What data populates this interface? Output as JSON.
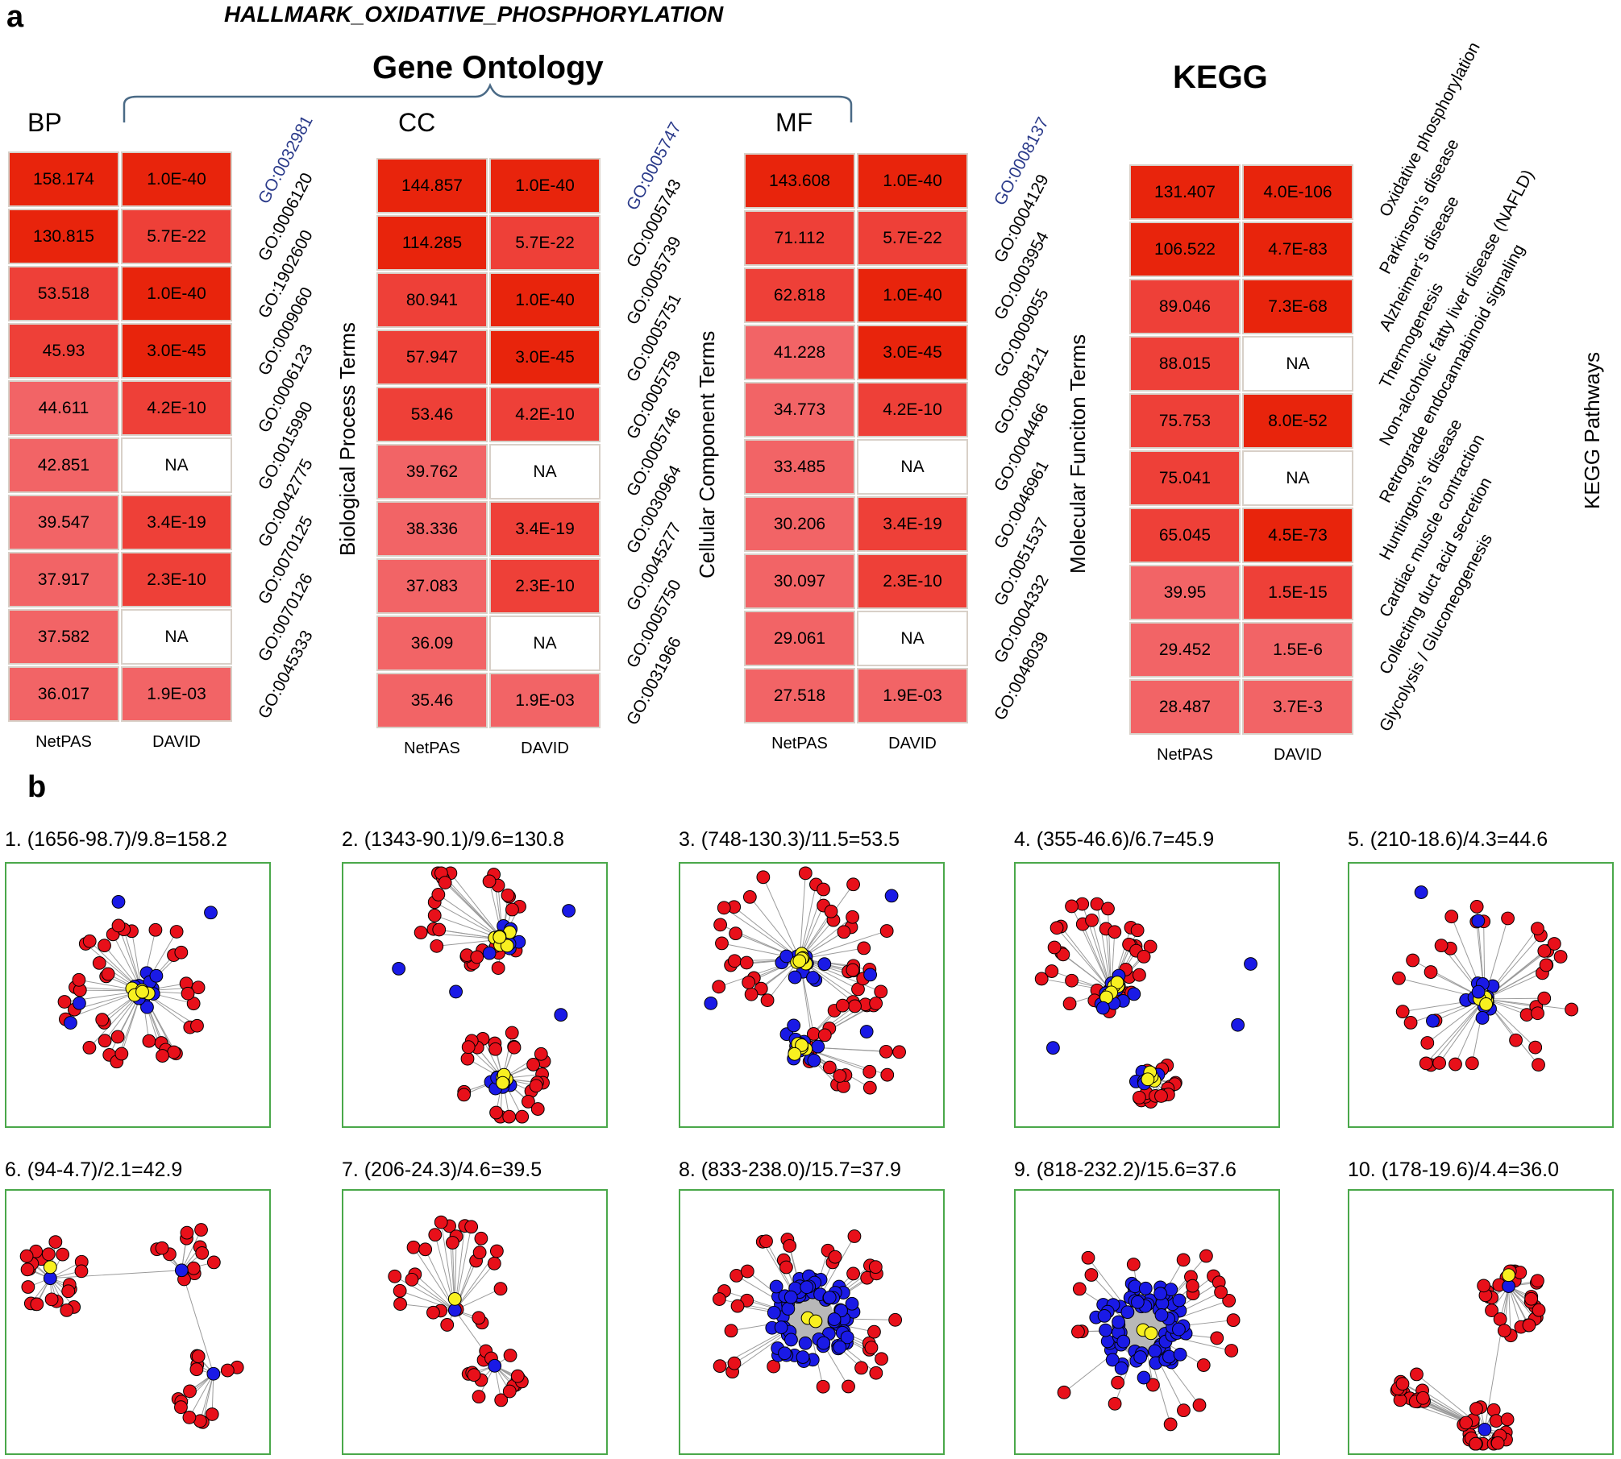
{
  "panel_a": {
    "letter": "a",
    "hallmark_title": "HALLMARK_OXIDATIVE_PHOSPHORYLATION",
    "gene_ontology_title": "Gene Ontology",
    "kegg_title": "KEGG",
    "col_netpas": "NetPAS",
    "col_david": "DAVID",
    "colors": {
      "strong": "#e8240c",
      "mid": "#ee4038",
      "light": "#f26466",
      "na": "#ffffff",
      "bracket": "#4a6a86",
      "border": "#d8d0c8"
    },
    "blocks": [
      {
        "key": "bp",
        "label": "BP",
        "axis_title": "Biological Process Terms",
        "rows": [
          {
            "netpas": "158.174",
            "david": "1.0E-40",
            "term": "GO:0032981"
          },
          {
            "netpas": "130.815",
            "david": "5.7E-22",
            "term": "GO:0006120"
          },
          {
            "netpas": "53.518",
            "david": "1.0E-40",
            "term": "GO:1902600"
          },
          {
            "netpas": "45.93",
            "david": "3.0E-45",
            "term": "GO:0009060"
          },
          {
            "netpas": "44.611",
            "david": "4.2E-10",
            "term": "GO:0006123"
          },
          {
            "netpas": "42.851",
            "david": "NA",
            "term": "GO:0015990"
          },
          {
            "netpas": "39.547",
            "david": "3.4E-19",
            "term": "GO:0042775"
          },
          {
            "netpas": "37.917",
            "david": "2.3E-10",
            "term": "GO:0070125"
          },
          {
            "netpas": "37.582",
            "david": "NA",
            "term": "GO:0070126"
          },
          {
            "netpas": "36.017",
            "david": "1.9E-03",
            "term": "GO:0045333"
          }
        ]
      },
      {
        "key": "cc",
        "label": "CC",
        "axis_title": "Cellular Component Terms",
        "rows": [
          {
            "netpas": "144.857",
            "david": "1.0E-40",
            "term": "GO:0005747"
          },
          {
            "netpas": "114.285",
            "david": "5.7E-22",
            "term": "GO:0005743"
          },
          {
            "netpas": "80.941",
            "david": "1.0E-40",
            "term": "GO:0005739"
          },
          {
            "netpas": "57.947",
            "david": "3.0E-45",
            "term": "GO:0005751"
          },
          {
            "netpas": "53.46",
            "david": "4.2E-10",
            "term": "GO:0005759"
          },
          {
            "netpas": "39.762",
            "david": "NA",
            "term": "GO:0005746"
          },
          {
            "netpas": "38.336",
            "david": "3.4E-19",
            "term": "GO:0030964"
          },
          {
            "netpas": "37.083",
            "david": "2.3E-10",
            "term": "GO:0045277"
          },
          {
            "netpas": "36.09",
            "david": "NA",
            "term": "GO:0005750"
          },
          {
            "netpas": "35.46",
            "david": "1.9E-03",
            "term": "GO:0031966"
          }
        ]
      },
      {
        "key": "mf",
        "label": "MF",
        "axis_title": "Molecular Funciton Terms",
        "rows": [
          {
            "netpas": "143.608",
            "david": "1.0E-40",
            "term": "GO:0008137"
          },
          {
            "netpas": "71.112",
            "david": "5.7E-22",
            "term": "GO:0004129"
          },
          {
            "netpas": "62.818",
            "david": "1.0E-40",
            "term": "GO:0003954"
          },
          {
            "netpas": "41.228",
            "david": "3.0E-45",
            "term": "GO:0009055"
          },
          {
            "netpas": "34.773",
            "david": "4.2E-10",
            "term": "GO:0008121"
          },
          {
            "netpas": "33.485",
            "david": "NA",
            "term": "GO:0004466"
          },
          {
            "netpas": "30.206",
            "david": "3.4E-19",
            "term": "GO:0046961"
          },
          {
            "netpas": "30.097",
            "david": "2.3E-10",
            "term": "GO:0051537"
          },
          {
            "netpas": "29.061",
            "david": "NA",
            "term": "GO:0004332"
          },
          {
            "netpas": "27.518",
            "david": "1.9E-03",
            "term": "GO:0048039"
          }
        ]
      },
      {
        "key": "kegg",
        "label": "",
        "axis_title": "KEGG Pathways",
        "rows": [
          {
            "netpas": "131.407",
            "david": "4.0E-106",
            "term": "Oxidative phosphorylation"
          },
          {
            "netpas": "106.522",
            "david": "4.7E-83",
            "term": "Parkinson's disease"
          },
          {
            "netpas": "89.046",
            "david": "7.3E-68",
            "term": "Alzheimer's disease"
          },
          {
            "netpas": "88.015",
            "david": "NA",
            "term": "Thermogenesis"
          },
          {
            "netpas": "75.753",
            "david": "8.0E-52",
            "term": "Non-alcoholic fatty liver disease (NAFLD)"
          },
          {
            "netpas": "75.041",
            "david": "NA",
            "term": "Retrograde endocannabinoid signaling"
          },
          {
            "netpas": "65.045",
            "david": "4.5E-73",
            "term": "Huntington's disease"
          },
          {
            "netpas": "39.95",
            "david": "1.5E-15",
            "term": "Cardiac muscle contraction"
          },
          {
            "netpas": "29.452",
            "david": "1.5E-6",
            "term": "Collecting duct acid secretion"
          },
          {
            "netpas": "28.487",
            "david": "3.7E-3",
            "term": "Glycolysis / Gluconeogenesis"
          }
        ]
      }
    ]
  },
  "panel_b": {
    "letter": "b",
    "node_colors": {
      "red": "#e8101a",
      "blue": "#1a1ae6",
      "yellow": "#f8f020",
      "edge": "#9a9a9a",
      "box": "#4aa84a"
    },
    "networks": [
      {
        "title": "1. (1656-98.7)/9.8=158.2"
      },
      {
        "title": "2. (1343-90.1)/9.6=130.8"
      },
      {
        "title": "3. (748-130.3)/11.5=53.5"
      },
      {
        "title": "4. (355-46.6)/6.7=45.9"
      },
      {
        "title": "5. (210-18.6)/4.3=44.6"
      },
      {
        "title": "6. (94-4.7)/2.1=42.9"
      },
      {
        "title": "7. (206-24.3)/4.6=39.5"
      },
      {
        "title": "8. (833-238.0)/15.7=37.9"
      },
      {
        "title": "9. (818-232.2)/15.6=37.6"
      },
      {
        "title": "10. (178-19.6)/4.4=36.0"
      }
    ]
  }
}
